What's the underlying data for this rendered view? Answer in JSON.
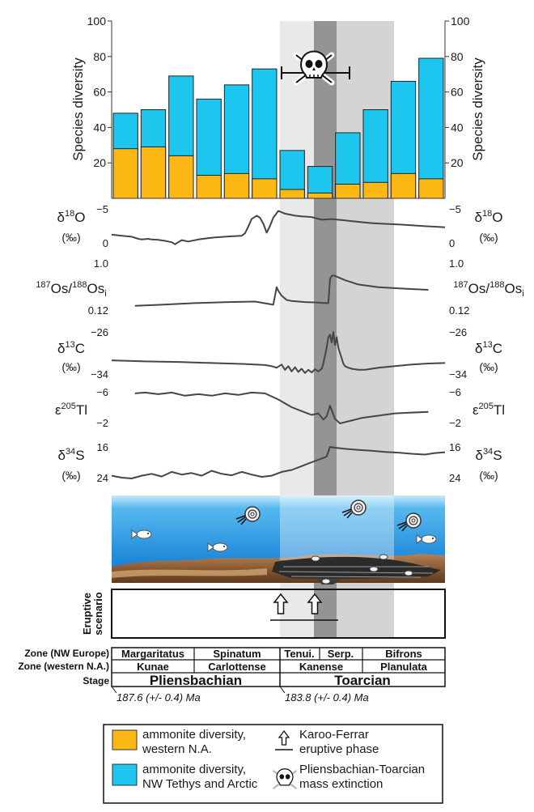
{
  "colors": {
    "western_na": "#FDB813",
    "nw_tethys": "#1CC6EE",
    "curve": "#454545",
    "band_light": "#e8e8e8",
    "band_mid": "#d2d2d2",
    "band_dark": "#969696",
    "sea_top": "#b8e6fa",
    "sea_bottom": "#0f80d6",
    "sediment": "#8a5a34"
  },
  "chart_data": {
    "type": "bar",
    "categories": [
      "1",
      "2",
      "3",
      "4",
      "5",
      "6",
      "7",
      "8",
      "9",
      "10",
      "11",
      "12"
    ],
    "series": [
      {
        "name": "ammonite diversity, western N.A.",
        "values": [
          28,
          29,
          24,
          13,
          14,
          11,
          5,
          3,
          8,
          9,
          14,
          11
        ]
      },
      {
        "name": "ammonite diversity, NW Tethys and Arctic",
        "values": [
          48,
          50,
          69,
          56,
          64,
          73,
          27,
          18,
          37,
          50,
          66,
          79
        ]
      }
    ],
    "ylabel": "Species diversity",
    "ylabel_right": "Species diversity",
    "ylim": [
      0,
      100
    ],
    "yticks": [
      "20",
      "40",
      "60",
      "80",
      "100"
    ],
    "proxies": [
      {
        "id": "d18o",
        "label_left": [
          "δ",
          "18",
          "O"
        ],
        "unit_left": "(‰)",
        "label_right": [
          "δ",
          "18",
          "O"
        ],
        "unit_right": "(‰)",
        "ticks_left": [
          "−5",
          "0"
        ],
        "ticks_right": [
          "−5",
          "0"
        ],
        "range": [
          -5,
          0
        ],
        "reversed": true,
        "x": [
          0,
          2,
          4,
          6,
          8,
          9,
          11,
          12,
          14,
          16,
          17,
          18,
          19,
          21,
          23,
          26,
          29,
          31,
          34,
          37,
          39,
          40,
          41,
          42,
          43.5,
          44.5,
          45.5,
          46.5,
          47.5,
          48.5,
          50,
          52,
          55,
          57,
          60,
          63,
          66,
          70,
          74,
          78,
          82,
          86,
          90,
          94,
          98,
          100
        ],
        "y": [
          -1.2,
          -1.1,
          -1.0,
          -0.9,
          -0.6,
          -0.5,
          -0.6,
          -0.5,
          -0.45,
          -0.3,
          -0.2,
          -0.1,
          0.2,
          -0.4,
          -0.2,
          -0.5,
          -0.7,
          -0.8,
          -0.9,
          -1.0,
          -1.05,
          -1.4,
          -2.4,
          -3.5,
          -4.0,
          -3.7,
          -2.8,
          -1.5,
          -2.5,
          -3.7,
          -4.7,
          -4.3,
          -4.0,
          -3.9,
          -3.8,
          -3.4,
          -3.5,
          -3.3,
          -3.1,
          -2.9,
          -2.8,
          -2.7,
          -2.6,
          -2.45,
          -2.35,
          -2.3
        ]
      },
      {
        "id": "os",
        "label_left": [
          "",
          "187",
          "Os/",
          "188",
          "Os",
          "i"
        ],
        "unit_left": "",
        "label_right": [
          "",
          "187",
          "Os/",
          "188",
          "Os",
          "i"
        ],
        "unit_right": "",
        "ticks_left": [
          "1.0",
          "0.12"
        ],
        "ticks_right": [
          "1.0",
          "0.12"
        ],
        "range": [
          0.12,
          1.0
        ],
        "reversed": false,
        "x": [
          7,
          15,
          25,
          35,
          43,
          48.5,
          49.5,
          50,
          51,
          52.5,
          54,
          58,
          62,
          64,
          65,
          65.5,
          66,
          66.5,
          67,
          70,
          74,
          80,
          88,
          95
        ],
        "y": [
          0.2,
          0.22,
          0.25,
          0.27,
          0.28,
          0.22,
          0.55,
          0.48,
          0.39,
          0.31,
          0.29,
          0.27,
          0.26,
          0.25,
          0.25,
          0.7,
          0.76,
          0.77,
          0.76,
          0.68,
          0.6,
          0.55,
          0.52,
          0.5
        ]
      },
      {
        "id": "d13c",
        "label_left": [
          "δ",
          "13",
          "C"
        ],
        "unit_left": "(‰)",
        "label_right": [
          "δ",
          "13",
          "C"
        ],
        "unit_right": "(‰)",
        "ticks_left": [
          "−26",
          "−34"
        ],
        "ticks_right": [
          "−26",
          "−34"
        ],
        "range": [
          -34,
          -26
        ],
        "reversed": true,
        "x": [
          0,
          10,
          20,
          30,
          40,
          46,
          48,
          49.5,
          51,
          52,
          53,
          54,
          55,
          56,
          57,
          58,
          59,
          60,
          61,
          62,
          63,
          63.5,
          64,
          64.5,
          65,
          65.5,
          66,
          66.5,
          67,
          67.5,
          68,
          68.5,
          69,
          69.5,
          70,
          71,
          72,
          74,
          76,
          78,
          80,
          85,
          90,
          95,
          100
        ],
        "y": [
          -28.6,
          -28.4,
          -28.3,
          -28.1,
          -27.9,
          -27.7,
          -27.5,
          -27.2,
          -27.8,
          -26.8,
          -27.5,
          -26.5,
          -27.3,
          -26.4,
          -27.0,
          -26.2,
          -26.8,
          -26.3,
          -26.9,
          -26.5,
          -27.0,
          -28.0,
          -29.5,
          -31.0,
          -33.0,
          -33.5,
          -32.0,
          -34.0,
          -31.5,
          -33.0,
          -31.0,
          -30.0,
          -29.0,
          -28.0,
          -27.5,
          -27.2,
          -27.0,
          -26.8,
          -26.8,
          -27.0,
          -27.2,
          -27.5,
          -27.8,
          -28.0,
          -28.1
        ]
      },
      {
        "id": "tl",
        "label_left": [
          "ε",
          "205",
          "Tl"
        ],
        "unit_left": "",
        "label_right": [
          "ε",
          "205",
          "Tl"
        ],
        "unit_right": "",
        "ticks_left": [
          "−6",
          "−2"
        ],
        "ticks_right": [
          "−6",
          "−2"
        ],
        "range": [
          -6,
          -2
        ],
        "reversed": true,
        "x": [
          7,
          10,
          14,
          18,
          22,
          26,
          30,
          34,
          38,
          42,
          46,
          50,
          54,
          57,
          60,
          62,
          63.5,
          64.5,
          65.5,
          67,
          68.5,
          75,
          85,
          95
        ],
        "y": [
          -5.8,
          -5.9,
          -5.7,
          -5.9,
          -5.5,
          -5.7,
          -5.5,
          -5.8,
          -5.6,
          -5.9,
          -5.8,
          -5.0,
          -4.0,
          -3.5,
          -3.0,
          -3.2,
          -2.4,
          -2.8,
          -4.2,
          -2.5,
          -1.9,
          -2.6,
          -3.2,
          -3.4
        ]
      },
      {
        "id": "s34",
        "label_left": [
          "δ",
          "34",
          "S"
        ],
        "unit_left": "(‰)",
        "label_right": [
          "δ",
          "34",
          "S"
        ],
        "unit_right": "(‰)",
        "ticks_left": [
          "16",
          "24"
        ],
        "ticks_right": [
          "16",
          "24"
        ],
        "range": [
          16,
          24
        ],
        "reversed": false,
        "x": [
          0,
          3,
          6,
          9,
          12,
          15,
          18,
          21,
          24,
          27,
          30,
          33,
          36,
          39,
          42,
          45,
          48,
          51,
          54,
          57,
          60,
          63,
          64.5,
          65.5,
          67,
          70,
          74,
          78,
          82,
          86,
          90,
          94,
          97,
          100
        ],
        "y": [
          16.5,
          16.0,
          15.8,
          16.5,
          17.0,
          16.3,
          17.5,
          16.8,
          17.2,
          16.5,
          17.8,
          17.0,
          16.6,
          17.5,
          16.8,
          16.2,
          16.5,
          17.5,
          18.0,
          19.0,
          20.0,
          21.0,
          21.5,
          24.0,
          23.8,
          23.5,
          23.2,
          23.0,
          22.7,
          22.5,
          22.2,
          22.0,
          22.4,
          22.6
        ]
      }
    ]
  },
  "eruptive": {
    "label_line1": "Eruptive",
    "label_line2": "scenario"
  },
  "stratigraphy": {
    "zone_nw_label": "Zone (NW Europe)",
    "zone_na_label": "Zone (western N.A.)",
    "stage_label": "Stage",
    "nw_zones": [
      "Margaritatus",
      "Spinatum",
      "Tenui.",
      "Serp.",
      "Bifrons"
    ],
    "na_zones": [
      "Kunae",
      "Carlottense",
      "Kanense",
      "Planulata"
    ],
    "stages": [
      "Pliensbachian",
      "Toarcian"
    ],
    "age_left": "187.6 (+/- 0.4) Ma",
    "age_right": "183.8 (+/- 0.4) Ma"
  },
  "legend": {
    "western_na_line1": "ammonite diversity,",
    "western_na_line2": "western N.A.",
    "nw_tethys_line1": "ammonite diversity,",
    "nw_tethys_line2": "NW Tethys and Arctic",
    "karoo_line1": "Karoo-Ferrar",
    "karoo_line2": "eruptive phase",
    "extinction_line1": "Pliensbachian-Toarcian",
    "extinction_line2": "mass extinction"
  },
  "icons": {
    "skull": "skull-crossbones-icon",
    "eruption": "up-arrow-icon",
    "ammonite": "ammonite-icon",
    "fish": "fish-icon"
  }
}
